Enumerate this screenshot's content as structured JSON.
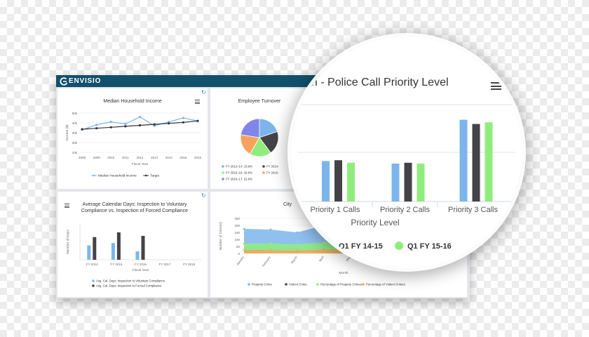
{
  "brand": {
    "name": "ENVISIO"
  },
  "panels": {
    "median_income": {
      "title": "Median Household Income",
      "chart_data": {
        "type": "line",
        "title": "Median Household Income",
        "xlabel": "Fiscal Year",
        "ylabel": "Income ($)",
        "x": [
          2008,
          2009,
          2010,
          2011,
          2012,
          2013,
          2014,
          2015,
          2016
        ],
        "y_ticks": [
          "10k",
          "20k",
          "30k",
          "40k",
          "50k"
        ],
        "ylim": [
          10000,
          50000
        ],
        "series": [
          {
            "name": "Median Household Income",
            "color": "#7cb5ec",
            "values": [
              33000,
              38000,
              41000,
              39000,
              46000,
              37000,
              41000,
              45000,
              42000
            ]
          },
          {
            "name": "Target",
            "color": "#333333",
            "values": [
              33500,
              34500,
              35500,
              36500,
              37500,
              38500,
              39500,
              40500,
              42000
            ]
          }
        ]
      }
    },
    "employee_turnover": {
      "title": "Employee Turnover",
      "chart_data": {
        "type": "pie",
        "title": "Employee Turnover",
        "slices": [
          {
            "label": "FY 2013–14: 19.8%",
            "value": 19.8,
            "color": "#7cb5ec"
          },
          {
            "label": "FY 2014-",
            "value": 20.0,
            "color": "#434348"
          },
          {
            "label": "FY 2015–16: 18.6%",
            "value": 18.6,
            "color": "#90ed7d"
          },
          {
            "label": "FY 2016-",
            "value": 19.0,
            "color": "#f7a35c"
          },
          {
            "label": "FY 2016–17: 22.6%",
            "value": 22.6,
            "color": "#8085e9"
          }
        ]
      }
    },
    "calendar_days": {
      "title": "Average Calendar Days: Inspection to Voluntary Compliance vs. Inspection of Forced Compliance",
      "chart_data": {
        "type": "bar",
        "xlabel": "Fiscal Year",
        "ylabel": "Number of Days",
        "categories": [
          "FY 2014",
          "FY 2015",
          "FY 2016",
          "FY 2017",
          "FY 2018"
        ],
        "ylim": [
          0,
          30
        ],
        "series": [
          {
            "name": "Avg. Cal. Days: Inspection to Voluntary Compliance",
            "color": "#7cb5ec",
            "values": [
              12,
              14,
              7,
              0,
              0
            ]
          },
          {
            "name": "Avg. Cal. Days: Inspection to Forced Compliance",
            "color": "#434348",
            "values": [
              19,
              23,
              20,
              0,
              0
            ]
          }
        ]
      }
    },
    "city_crime": {
      "title": "City",
      "chart_data": {
        "type": "area",
        "xlabel": "Month",
        "ylabel": "Number of Crime(s)",
        "y_ticks": [
          "0",
          "50",
          "100",
          "150",
          "200",
          "250"
        ],
        "ylim": [
          0,
          250
        ],
        "categories": [
          "January",
          "February",
          "March",
          "April",
          "May"
        ],
        "series": [
          {
            "name": "Property Crime",
            "color": "#7cb5ec",
            "values": [
              175,
              170,
              150,
              200,
              185
            ]
          },
          {
            "name": "Violent Crime",
            "color": "#434348",
            "values": [
              0,
              0,
              0,
              0,
              0
            ]
          },
          {
            "name": "Percentage of Property Crimes",
            "color": "#90ed7d",
            "values": [
              70,
              72,
              65,
              80,
              75
            ]
          },
          {
            "name": "Percentage of Violent Crimes",
            "color": "#f7a35c",
            "values": [
              25,
              24,
              22,
              28,
              26
            ]
          }
        ]
      }
    },
    "police_priority": {
      "title": "on - Police Call Priority Level",
      "chart_data": {
        "type": "bar",
        "xlabel": "Priority Level",
        "categories": [
          "Priority 1 Calls",
          "Priority 2 Calls",
          "Priority 3 Calls"
        ],
        "series": [
          {
            "name": "",
            "color": "#7cb5ec",
            "values": [
              480,
              450,
              970
            ]
          },
          {
            "name": "Q1 FY 14-15",
            "color": "#434348",
            "values": [
              490,
              460,
              920
            ]
          },
          {
            "name": "Q1 FY 15-16",
            "color": "#90ed7d",
            "values": [
              460,
              450,
              940
            ]
          }
        ],
        "ylim": [
          0,
          1000
        ]
      }
    }
  }
}
